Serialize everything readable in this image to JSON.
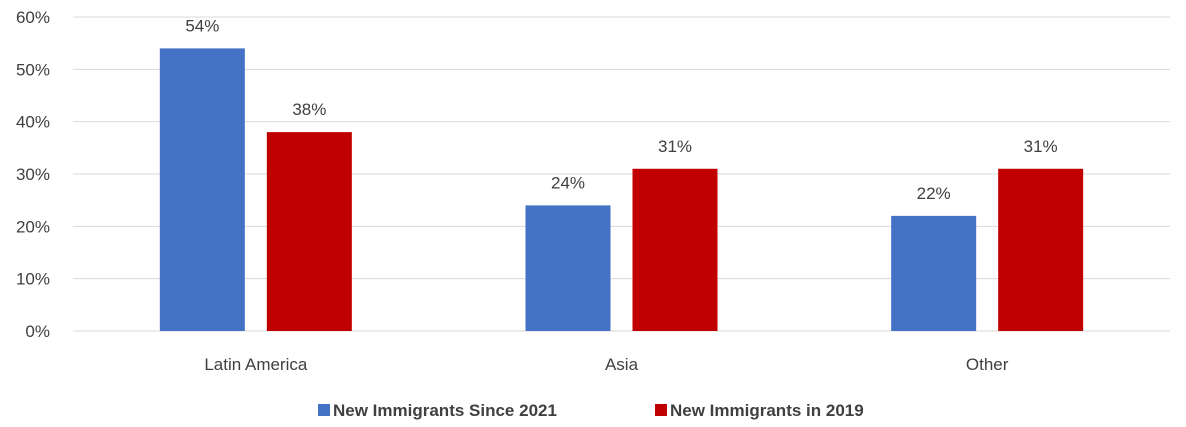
{
  "chart_data": {
    "type": "bar",
    "title": "",
    "xlabel": "",
    "ylabel": "",
    "categories": [
      "Latin America",
      "Asia",
      "Other"
    ],
    "series": [
      {
        "name": "New Immigrants Since 2021",
        "values": [
          54,
          24,
          22
        ],
        "color": "#4472C4"
      },
      {
        "name": "New Immigrants in 2019",
        "values": [
          38,
          31,
          31
        ],
        "color": "#C00000"
      }
    ],
    "data_labels": [
      [
        "54%",
        "24%",
        "22%"
      ],
      [
        "38%",
        "31%",
        "31%"
      ]
    ],
    "ylim": [
      0,
      60
    ],
    "y_ticks": [
      0,
      10,
      20,
      30,
      40,
      50,
      60
    ],
    "y_tick_labels": [
      "0%",
      "10%",
      "20%",
      "30%",
      "40%",
      "50%",
      "60%"
    ],
    "grid": true,
    "legend_position": "bottom",
    "colors": {
      "gridline": "#D9D9D9",
      "text": "#404040"
    }
  }
}
